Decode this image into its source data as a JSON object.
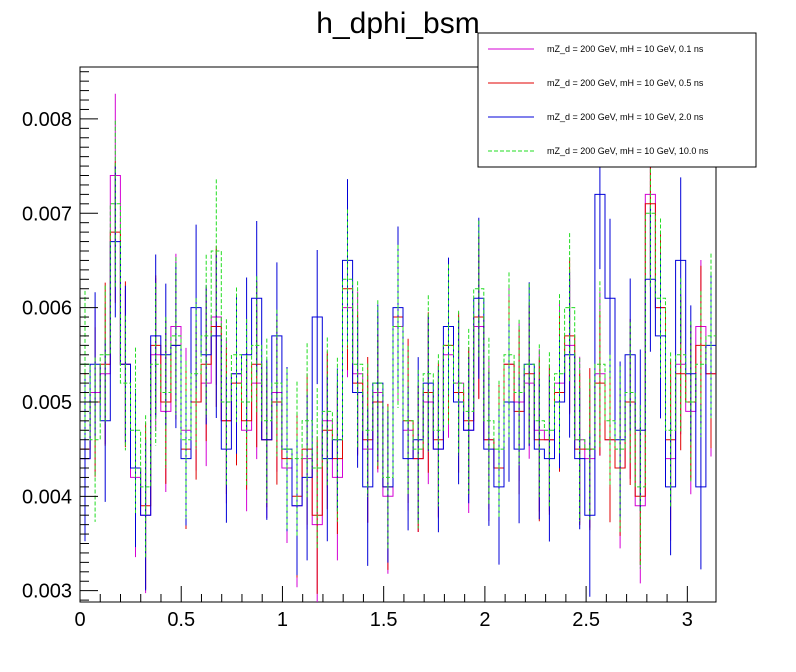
{
  "chart_data": {
    "type": "line",
    "title": "h_dphi_bsm",
    "xlabel": "",
    "ylabel": "",
    "xlim": [
      0,
      3.1416
    ],
    "ylim": [
      0.00288,
      0.00855
    ],
    "x_ticks": [
      0,
      0.5,
      1,
      1.5,
      2,
      2.5,
      3
    ],
    "x_tick_labels": [
      "0",
      "0.5",
      "1",
      "1.5",
      "2",
      "2.5",
      "3"
    ],
    "y_ticks": [
      0.003,
      0.004,
      0.005,
      0.006,
      0.007,
      0.008
    ],
    "y_tick_labels": [
      "0.003",
      "0.004",
      "0.005",
      "0.006",
      "0.007",
      "0.008"
    ],
    "bins": 63,
    "legend": {
      "position": "top-right",
      "entries": [
        {
          "label": "mZ_d = 200 GeV, mH = 10 GeV, 0.1 ns",
          "color": "#d400d4",
          "style": "solid"
        },
        {
          "label": "mZ_d = 200 GeV, mH = 10 GeV, 0.5 ns",
          "color": "#e00000",
          "style": "solid"
        },
        {
          "label": "mZ_d = 200 GeV, mH = 10 GeV, 2.0 ns",
          "color": "#0000d8",
          "style": "solid"
        },
        {
          "label": "mZ_d = 200 GeV, mH = 10 GeV, 10.0 ns",
          "color": "#22dd22",
          "style": "dashed"
        }
      ]
    },
    "series": [
      {
        "name": "mZ_d = 200 GeV, mH = 10 GeV, 0.1 ns",
        "color": "#d400d4",
        "values": [
          0.0044,
          0.0051,
          0.0053,
          0.0074,
          0.0054,
          0.0042,
          0.0038,
          0.0055,
          0.0049,
          0.0058,
          0.0047,
          0.005,
          0.0052,
          0.0059,
          0.0048,
          0.0053,
          0.0047,
          0.0052,
          0.0046,
          0.0051,
          0.0043,
          0.0039,
          0.0044,
          0.0037,
          0.0048,
          0.0042,
          0.006,
          0.0053,
          0.0045,
          0.0051,
          0.004,
          0.0058,
          0.0047,
          0.0044,
          0.005,
          0.0045,
          0.0055,
          0.0052,
          0.0047,
          0.0058,
          0.0046,
          0.0043,
          0.0054,
          0.005,
          0.0052,
          0.0047,
          0.0046,
          0.0052,
          0.0056,
          0.0046,
          0.0044,
          0.0053,
          0.0046,
          0.0043,
          0.005,
          0.0039,
          0.0072,
          0.006,
          0.0044,
          0.0054,
          0.0049,
          0.0058,
          0.0053
        ]
      },
      {
        "name": "mZ_d = 200 GeV, mH = 10 GeV, 0.5 ns",
        "color": "#e00000",
        "values": [
          0.0045,
          0.005,
          0.0054,
          0.0068,
          0.0054,
          0.0043,
          0.0039,
          0.0056,
          0.005,
          0.0056,
          0.0045,
          0.005,
          0.0054,
          0.0058,
          0.0048,
          0.0052,
          0.0048,
          0.0054,
          0.0046,
          0.005,
          0.0044,
          0.004,
          0.0045,
          0.0038,
          0.0047,
          0.0044,
          0.0062,
          0.0052,
          0.0046,
          0.005,
          0.0041,
          0.0059,
          0.0048,
          0.0044,
          0.0051,
          0.0046,
          0.0056,
          0.0051,
          0.0048,
          0.0059,
          0.0046,
          0.0043,
          0.0054,
          0.0049,
          0.0053,
          0.0046,
          0.0046,
          0.0051,
          0.0057,
          0.0045,
          0.0045,
          0.0052,
          0.0046,
          0.0043,
          0.005,
          0.004,
          0.0071,
          0.006,
          0.0046,
          0.0053,
          0.005,
          0.0056,
          0.0053
        ]
      },
      {
        "name": "mZ_d = 200 GeV, mH = 10 GeV, 2.0 ns",
        "color": "#0000d8",
        "values": [
          0.0044,
          0.0054,
          0.0048,
          0.0067,
          0.0054,
          0.0043,
          0.0038,
          0.0057,
          0.0055,
          0.0056,
          0.0044,
          0.006,
          0.0055,
          0.0057,
          0.0045,
          0.0053,
          0.0055,
          0.0061,
          0.0046,
          0.0057,
          0.0045,
          0.0039,
          0.0042,
          0.0059,
          0.0044,
          0.0046,
          0.0065,
          0.0051,
          0.0041,
          0.0052,
          0.0041,
          0.006,
          0.0044,
          0.0046,
          0.0052,
          0.0045,
          0.0058,
          0.005,
          0.0047,
          0.0061,
          0.0045,
          0.0041,
          0.005,
          0.0045,
          0.0054,
          0.0045,
          0.0044,
          0.005,
          0.0055,
          0.0044,
          0.0038,
          0.0072,
          0.0061,
          0.0046,
          0.0055,
          0.0047,
          0.0063,
          0.0057,
          0.0041,
          0.0065,
          0.0053,
          0.0041,
          0.0056
        ]
      },
      {
        "name": "mZ_d = 200 GeV, mH = 10 GeV, 10.0 ns",
        "color": "#22dd22",
        "values": [
          0.0054,
          0.0046,
          0.0055,
          0.0071,
          0.0052,
          0.0047,
          0.0041,
          0.0054,
          0.0051,
          0.0057,
          0.0046,
          0.0053,
          0.0057,
          0.0066,
          0.005,
          0.0055,
          0.005,
          0.0056,
          0.0048,
          0.0052,
          0.0045,
          0.0044,
          0.0048,
          0.0043,
          0.0049,
          0.0046,
          0.0063,
          0.0054,
          0.0047,
          0.0052,
          0.0042,
          0.0058,
          0.0048,
          0.0045,
          0.0053,
          0.0047,
          0.0056,
          0.0052,
          0.0049,
          0.0062,
          0.0048,
          0.0045,
          0.0055,
          0.0051,
          0.0054,
          0.0048,
          0.0047,
          0.0053,
          0.006,
          0.0046,
          0.0045,
          0.0054,
          0.0048,
          0.0045,
          0.0051,
          0.0041,
          0.007,
          0.0061,
          0.0047,
          0.0055,
          0.005,
          0.0054,
          0.0057
        ]
      }
    ],
    "error_bars": true
  }
}
